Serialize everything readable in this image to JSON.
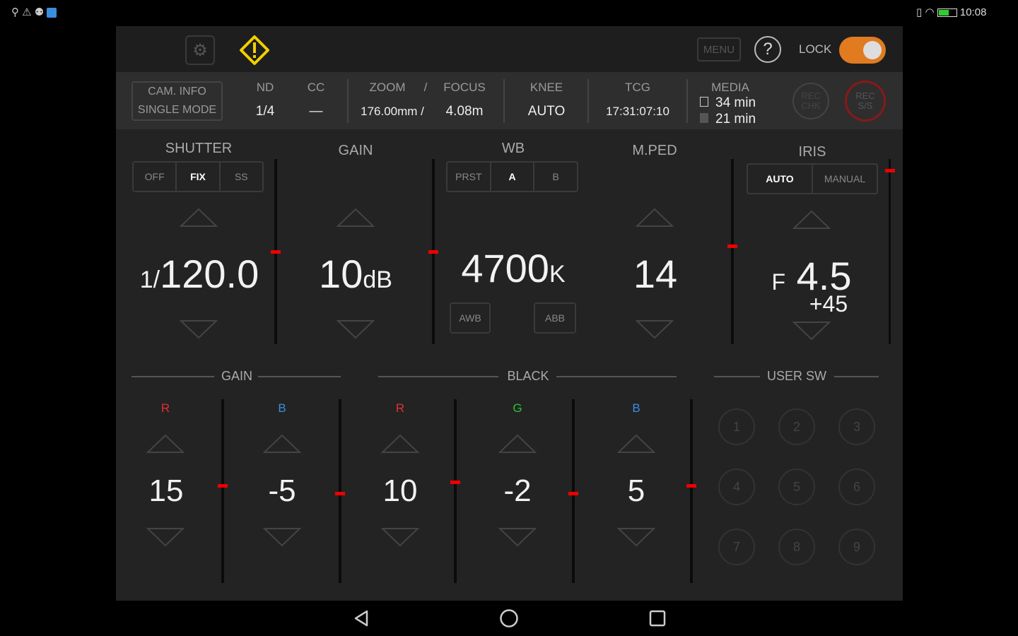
{
  "status_bar": {
    "time": "10:08",
    "left_icons": [
      "location-icon",
      "warning-icon",
      "notification-icon",
      "app-icon"
    ],
    "right_icons": [
      "vibrate-icon",
      "wifi-icon",
      "battery-icon"
    ]
  },
  "topbar": {
    "menu_label": "MENU",
    "lock_label": "LOCK",
    "lock_on": true,
    "accent": "#e07b20",
    "warning_color": "#f0d000"
  },
  "info": {
    "cam_info": "CAM. INFO",
    "mode": "SINGLE MODE",
    "nd_label": "ND",
    "nd_value": "1/4",
    "cc_label": "CC",
    "cc_value": "—",
    "zoom_label": "ZOOM",
    "slash": "/",
    "focus_label": "FOCUS",
    "zoom_value": "176.00mm /",
    "focus_value": "4.08m",
    "knee_label": "KNEE",
    "knee_value": "AUTO",
    "tcg_label": "TCG",
    "tcg_value": "17:31:07:10",
    "media_label": "MEDIA",
    "media1": "34 min",
    "media2": "21 min",
    "rec_chk": "REC CHK",
    "rec_ss": "REC S/S"
  },
  "shutter": {
    "title": "SHUTTER",
    "modes": [
      "OFF",
      "FIX",
      "SS"
    ],
    "selected": "FIX",
    "prefix": "1/",
    "value": "120.0",
    "level": 0.5
  },
  "gain": {
    "title": "GAIN",
    "value": "10",
    "unit": "dB",
    "level": 0.5
  },
  "wb": {
    "title": "WB",
    "modes": [
      "PRST",
      "A",
      "B"
    ],
    "selected": "A",
    "value": "4700",
    "unit": "K",
    "awb": "AWB",
    "abb": "ABB"
  },
  "mped": {
    "title": "M.PED",
    "value": "14",
    "level": 0.53
  },
  "iris": {
    "title": "IRIS",
    "modes": [
      "AUTO",
      "MANUAL"
    ],
    "selected": "AUTO",
    "prefix": "F",
    "value": "4.5",
    "offset": "+45",
    "level": 0.94
  },
  "gain_rgb": {
    "title": "GAIN",
    "channels": [
      {
        "ch": "R",
        "value": "15",
        "level": 0.53,
        "color": "#e03030"
      },
      {
        "ch": "B",
        "value": "-5",
        "level": 0.49,
        "color": "#3a8ee0"
      }
    ]
  },
  "black_rgb": {
    "title": "BLACK",
    "channels": [
      {
        "ch": "R",
        "value": "10",
        "level": 0.55,
        "color": "#e03030"
      },
      {
        "ch": "G",
        "value": "-2",
        "level": 0.49,
        "color": "#30c030"
      },
      {
        "ch": "B",
        "value": "5",
        "level": 0.53,
        "color": "#3a8ee0"
      }
    ]
  },
  "user_sw": {
    "title": "USER SW",
    "buttons": [
      "1",
      "2",
      "3",
      "4",
      "5",
      "6",
      "7",
      "8",
      "9"
    ]
  },
  "navbar": {
    "icons": [
      "back-icon",
      "home-icon",
      "recents-icon"
    ]
  }
}
